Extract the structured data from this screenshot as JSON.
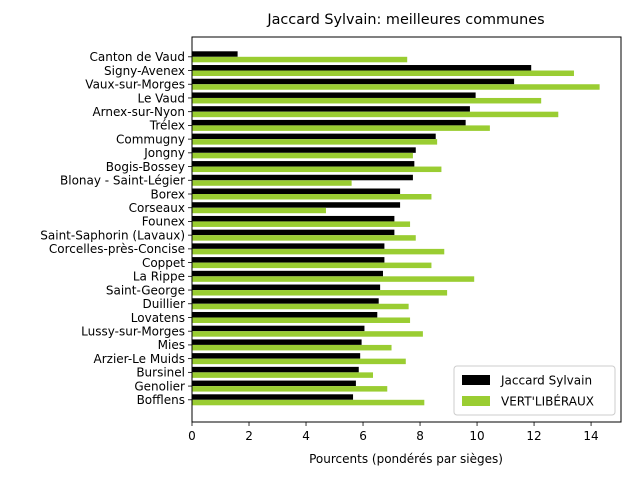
{
  "chart_data": {
    "type": "bar",
    "orientation": "horizontal",
    "title": "Jaccard Sylvain: meilleures communes",
    "xlabel": "Pourcents (pondérés par sièges)",
    "ylabel": "",
    "xlim": [
      0,
      15.05
    ],
    "xticks": [
      0,
      2,
      4,
      6,
      8,
      10,
      12,
      14
    ],
    "grid": false,
    "legend_position": "lower-right",
    "categories": [
      "Canton de Vaud",
      "Signy-Avenex",
      "Vaux-sur-Morges",
      "Le Vaud",
      "Arnex-sur-Nyon",
      "Trélex",
      "Commugny",
      "Jongny",
      "Bogis-Bossey",
      "Blonay - Saint-Légier",
      "Borex",
      "Corseaux",
      "Founex",
      "Saint-Saphorin (Lavaux)",
      "Corcelles-près-Concise",
      "Coppet",
      "La Rippe",
      "Saint-George",
      "Duillier",
      "Lovatens",
      "Lussy-sur-Morges",
      "Mies",
      "Arzier-Le Muids",
      "Bursinel",
      "Genolier",
      "Bofflens"
    ],
    "series": [
      {
        "name": "Jaccard Sylvain",
        "color": "#000000",
        "values": [
          1.6,
          11.9,
          11.3,
          9.95,
          9.75,
          9.6,
          8.55,
          7.85,
          7.8,
          7.75,
          7.3,
          7.3,
          7.1,
          7.1,
          6.75,
          6.75,
          6.7,
          6.6,
          6.55,
          6.5,
          6.05,
          5.95,
          5.9,
          5.85,
          5.75,
          5.65
        ]
      },
      {
        "name": "VERT'LIBÉRAUX",
        "color": "#9ACD32",
        "values": [
          7.55,
          13.4,
          14.3,
          12.25,
          12.85,
          10.45,
          8.6,
          7.75,
          8.75,
          5.6,
          8.4,
          4.7,
          7.65,
          7.85,
          8.85,
          8.4,
          9.9,
          8.95,
          7.6,
          7.65,
          8.1,
          7.0,
          7.5,
          6.35,
          6.85,
          8.15
        ]
      }
    ]
  }
}
